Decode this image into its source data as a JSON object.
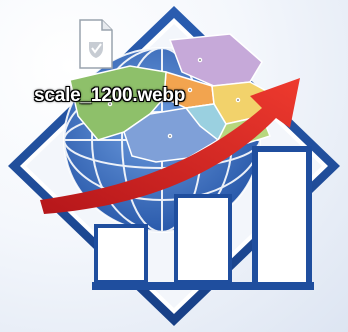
{
  "desktop": {
    "wallpaper": {
      "description_icon": "globe-map-growth-logo",
      "colors": {
        "frame_blue": "#1f4e9e",
        "arrow_red": "#d9231f",
        "globe_blue": "#3f74c3",
        "bars_white": "#ffffff"
      }
    },
    "file": {
      "icon": "image-file-icon",
      "name": "scale_1200.webp"
    }
  }
}
